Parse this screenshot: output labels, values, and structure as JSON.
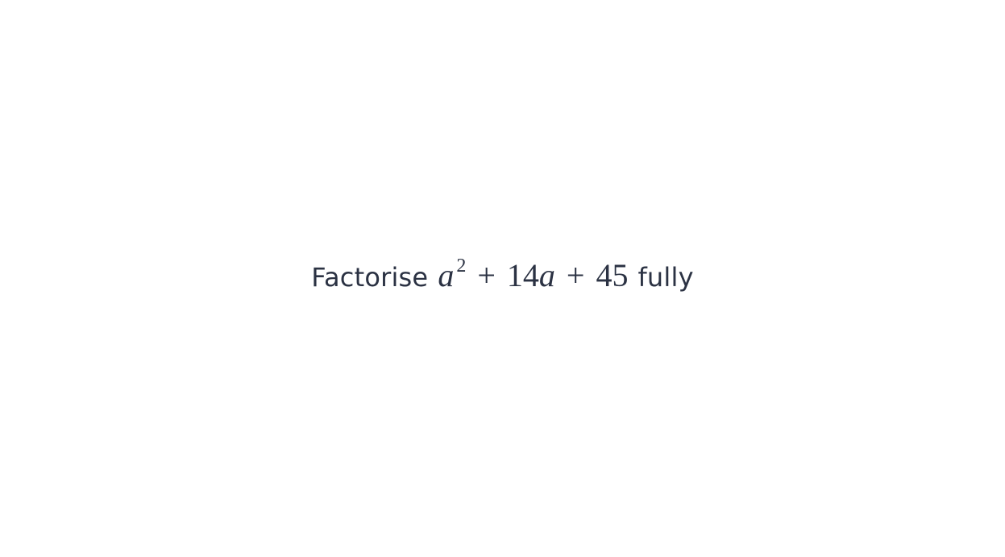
{
  "question": {
    "prefix": "Factorise",
    "expression": {
      "term1_var": "a",
      "term1_exp": "2",
      "op1": "+",
      "term2_coef": "14",
      "term2_var": "a",
      "op2": "+",
      "term3": "45"
    },
    "suffix": "fully"
  }
}
